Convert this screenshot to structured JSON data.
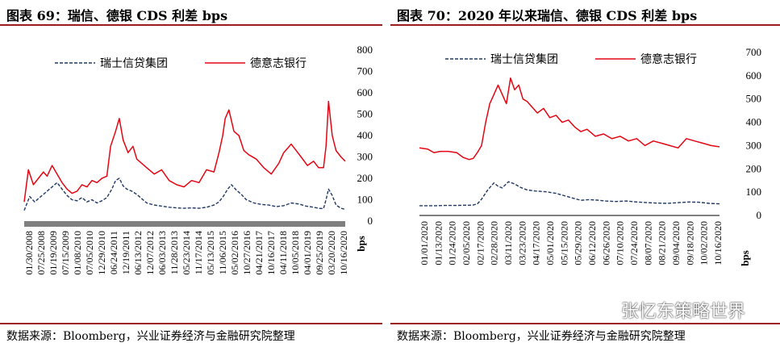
{
  "left_panel": {
    "title": "图表 69：瑞信、德银 CDS 利差 bps",
    "source": "数据来源：Bloomberg，兴业证券经济与金融研究院整理"
  },
  "right_panel": {
    "title": "图表 70：2020 年以来瑞信、德银 CDS 利差 bps",
    "source": "数据来源：Bloomberg，兴业证券经济与金融研究院整理"
  },
  "watermark": {
    "text": "张忆东策略世界",
    "icon": "wechat-icon"
  },
  "colors": {
    "credit_suisse": "#1f3864",
    "deutsche_bank": "#e30613",
    "frame": "#9a1c1c",
    "axis_bar": "#7f7f7f"
  },
  "chart_data": [
    {
      "type": "line",
      "title": "图表 69：瑞信、德银 CDS 利差 bps",
      "ylabel": "bps",
      "ylim": [
        0,
        800
      ],
      "yticks": [
        0,
        100,
        200,
        300,
        400,
        500,
        600,
        700,
        800
      ],
      "y_axis_side": "right",
      "legend_position": "top",
      "x_range": [
        "01/30/2008",
        "12/31/2020"
      ],
      "xtick_labels": [
        "01/30/2008",
        "07/25/2008",
        "01/19/2009",
        "07/15/2009",
        "01/08/2010",
        "07/05/2010",
        "12/29/2010",
        "06/24/2011",
        "12/19/2011",
        "06/13/2012",
        "12/07/2012",
        "06/03/2013",
        "11/28/2013",
        "05/23/2014",
        "11/17/2014",
        "05/13/2015",
        "11/06/2015",
        "05/02/2016",
        "10/27/2016",
        "04/21/2017",
        "10/16/2017",
        "04/11/2018",
        "10/05/2018",
        "04/01/2019",
        "09/25/2019",
        "03/20/2020",
        "10/16/2020"
      ],
      "series": [
        {
          "name": "瑞士信贷集团",
          "style": "dashed",
          "color": "#1f3864",
          "x": [
            2008.08,
            2008.3,
            2008.5,
            2008.7,
            2008.85,
            2009.0,
            2009.2,
            2009.4,
            2009.6,
            2009.8,
            2010.0,
            2010.2,
            2010.4,
            2010.6,
            2010.8,
            2011.0,
            2011.2,
            2011.4,
            2011.6,
            2011.75,
            2011.9,
            2012.05,
            2012.2,
            2012.4,
            2012.6,
            2012.8,
            2013.0,
            2013.3,
            2013.6,
            2013.9,
            2014.2,
            2014.5,
            2014.8,
            2015.1,
            2015.4,
            2015.7,
            2015.9,
            2016.1,
            2016.25,
            2016.4,
            2016.6,
            2016.8,
            2017.0,
            2017.3,
            2017.6,
            2017.9,
            2018.2,
            2018.5,
            2018.8,
            2019.1,
            2019.4,
            2019.7,
            2019.9,
            2020.1,
            2020.2,
            2020.3,
            2020.45,
            2020.6,
            2020.8,
            2020.97
          ],
          "values": [
            50,
            115,
            90,
            110,
            125,
            140,
            160,
            180,
            150,
            120,
            100,
            95,
            110,
            90,
            100,
            85,
            95,
            110,
            150,
            190,
            200,
            165,
            150,
            140,
            125,
            105,
            85,
            75,
            70,
            65,
            62,
            60,
            62,
            60,
            65,
            75,
            90,
            120,
            150,
            170,
            145,
            125,
            100,
            85,
            78,
            75,
            68,
            72,
            85,
            80,
            70,
            65,
            60,
            58,
            100,
            150,
            120,
            75,
            60,
            55
          ]
        },
        {
          "name": "德意志银行",
          "style": "solid",
          "color": "#e30613",
          "x": [
            2008.08,
            2008.25,
            2008.45,
            2008.65,
            2008.85,
            2009.0,
            2009.2,
            2009.4,
            2009.6,
            2009.8,
            2010.0,
            2010.2,
            2010.4,
            2010.6,
            2010.8,
            2011.0,
            2011.2,
            2011.4,
            2011.55,
            2011.75,
            2011.9,
            2012.05,
            2012.25,
            2012.45,
            2012.6,
            2012.8,
            2013.0,
            2013.3,
            2013.6,
            2013.9,
            2014.2,
            2014.5,
            2014.8,
            2015.1,
            2015.4,
            2015.7,
            2015.9,
            2016.05,
            2016.15,
            2016.3,
            2016.5,
            2016.7,
            2016.9,
            2017.1,
            2017.4,
            2017.7,
            2018.0,
            2018.3,
            2018.5,
            2018.8,
            2019.0,
            2019.2,
            2019.45,
            2019.7,
            2019.9,
            2020.1,
            2020.2,
            2020.3,
            2020.45,
            2020.6,
            2020.8,
            2020.97
          ],
          "values": [
            90,
            240,
            170,
            200,
            230,
            210,
            260,
            220,
            180,
            150,
            130,
            140,
            170,
            160,
            190,
            180,
            200,
            210,
            350,
            420,
            480,
            380,
            320,
            350,
            290,
            270,
            250,
            220,
            240,
            190,
            170,
            160,
            190,
            180,
            240,
            230,
            320,
            400,
            480,
            520,
            420,
            400,
            330,
            310,
            290,
            250,
            220,
            270,
            320,
            360,
            330,
            300,
            260,
            280,
            250,
            250,
            350,
            560,
            400,
            330,
            300,
            280
          ]
        }
      ]
    },
    {
      "type": "line",
      "title": "图表 70：2020 年以来瑞信、德银 CDS 利差 bps",
      "ylabel": "bps",
      "ylim": [
        0,
        700
      ],
      "yticks": [
        0,
        100,
        200,
        300,
        400,
        500,
        600,
        700
      ],
      "y_axis_side": "right",
      "legend_position": "top",
      "x_range": [
        "01/01/2020",
        "10/16/2020"
      ],
      "xtick_labels": [
        "01/01/2020",
        "01/13/2020",
        "01/24/2020",
        "02/05/2020",
        "02/17/2020",
        "02/28/2020",
        "03/11/2020",
        "03/23/2020",
        "04/17/2020",
        "05/01/2020",
        "05/15/2020",
        "05/29/2020",
        "06/12/2020",
        "06/26/2020",
        "07/10/2020",
        "07/24/2020",
        "08/07/2020",
        "08/21/2020",
        "09/04/2020",
        "09/18/2020",
        "10/02/2020",
        "10/16/2020"
      ],
      "series": [
        {
          "name": "瑞士信贷集团",
          "style": "dashed",
          "color": "#1f3864",
          "x": [
            0,
            8,
            16,
            24,
            34,
            44,
            48,
            52,
            56,
            60,
            66,
            72,
            76,
            80,
            86,
            92,
            98,
            104,
            112,
            122,
            132,
            140,
            148,
            156,
            164,
            172,
            180,
            190,
            200,
            210,
            220,
            230,
            240,
            250,
            260,
            270,
            280,
            290
          ],
          "values": [
            42,
            42,
            42,
            43,
            43,
            44,
            44,
            45,
            50,
            70,
            110,
            140,
            125,
            118,
            145,
            135,
            120,
            110,
            105,
            102,
            95,
            85,
            75,
            65,
            68,
            66,
            62,
            60,
            62,
            58,
            55,
            53,
            52,
            55,
            58,
            57,
            52,
            50
          ]
        },
        {
          "name": "德意志银行",
          "style": "solid",
          "color": "#e30613",
          "x": [
            0,
            8,
            14,
            20,
            28,
            36,
            42,
            48,
            52,
            56,
            60,
            64,
            68,
            72,
            76,
            80,
            84,
            88,
            92,
            96,
            100,
            104,
            108,
            114,
            120,
            126,
            132,
            138,
            144,
            150,
            156,
            162,
            170,
            178,
            186,
            194,
            202,
            210,
            218,
            226,
            234,
            242,
            250,
            258,
            266,
            274,
            282,
            290
          ],
          "values": [
            290,
            285,
            270,
            275,
            275,
            270,
            250,
            240,
            245,
            270,
            300,
            400,
            480,
            520,
            560,
            520,
            480,
            590,
            540,
            560,
            500,
            490,
            470,
            440,
            460,
            420,
            430,
            400,
            410,
            380,
            360,
            370,
            340,
            350,
            330,
            340,
            320,
            330,
            300,
            320,
            310,
            300,
            290,
            330,
            320,
            310,
            300,
            295
          ]
        }
      ]
    }
  ]
}
